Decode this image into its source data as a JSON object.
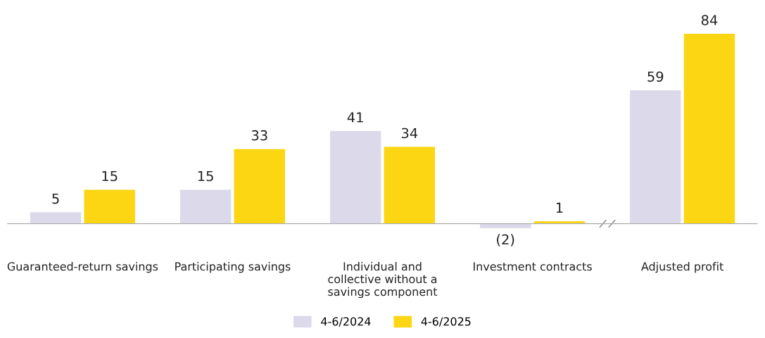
{
  "chart_data": {
    "type": "bar",
    "categories": [
      "Guaranteed-return savings",
      "Participating savings",
      "Individual and\ncollective without a\nsavings component",
      "Investment contracts",
      "Adjusted profit"
    ],
    "series": [
      {
        "name": "4-6/2024",
        "color": "#dcdaea",
        "values": [
          5,
          15,
          41,
          -2,
          59
        ],
        "value_labels": [
          "5",
          "15",
          "41",
          "(2)",
          "59"
        ]
      },
      {
        "name": "4-6/2025",
        "color": "#fcd612",
        "values": [
          15,
          33,
          34,
          1,
          84
        ],
        "value_labels": [
          "15",
          "33",
          "34",
          "1",
          "84"
        ]
      }
    ],
    "legend": "bottom"
  }
}
